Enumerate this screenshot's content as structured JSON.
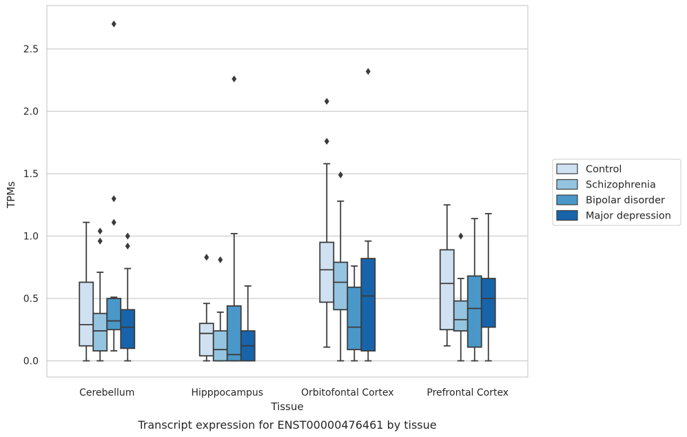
{
  "chart_data": {
    "type": "box",
    "xlabel": "Tissue",
    "ylabel": "TPMs",
    "caption": "Transcript expression for ENST00000476461 by tissue",
    "ylim": [
      -0.13,
      2.85
    ],
    "yticks": [
      0.0,
      0.5,
      1.0,
      1.5,
      2.0,
      2.5
    ],
    "ytick_labels": [
      "0.0",
      "0.5",
      "1.0",
      "1.5",
      "2.0",
      "2.5"
    ],
    "grid": "horizontal",
    "legend_position": "right",
    "categories": [
      "Cerebellum",
      "Hipppocampus",
      "Orbitofontal Cortex",
      "Prefrontal Cortex"
    ],
    "series": [
      {
        "name": "Control",
        "color": "#d0e1f2",
        "boxes": [
          {
            "min": 0.0,
            "q1": 0.12,
            "median": 0.29,
            "q3": 0.63,
            "max": 1.11,
            "outliers": []
          },
          {
            "min": 0.0,
            "q1": 0.04,
            "median": 0.22,
            "q3": 0.3,
            "max": 0.46,
            "outliers": [
              0.83
            ]
          },
          {
            "min": 0.11,
            "q1": 0.47,
            "median": 0.73,
            "q3": 0.95,
            "max": 1.58,
            "outliers": [
              1.76,
              2.08
            ]
          },
          {
            "min": 0.12,
            "q1": 0.25,
            "median": 0.62,
            "q3": 0.89,
            "max": 1.25,
            "outliers": []
          }
        ]
      },
      {
        "name": "Schizophrenia",
        "color": "#94c4df",
        "boxes": [
          {
            "min": 0.0,
            "q1": 0.08,
            "median": 0.24,
            "q3": 0.38,
            "max": 0.71,
            "outliers": [
              0.96,
              1.04
            ]
          },
          {
            "min": 0.0,
            "q1": 0.0,
            "median": 0.09,
            "q3": 0.24,
            "max": 0.39,
            "outliers": [
              0.81
            ]
          },
          {
            "min": 0.0,
            "q1": 0.41,
            "median": 0.63,
            "q3": 0.79,
            "max": 1.28,
            "outliers": [
              1.49
            ]
          },
          {
            "min": 0.0,
            "q1": 0.24,
            "median": 0.33,
            "q3": 0.48,
            "max": 0.66,
            "outliers": [
              1.0
            ]
          }
        ]
      },
      {
        "name": "Bipolar disorder",
        "color": "#4a98c9",
        "boxes": [
          {
            "min": 0.08,
            "q1": 0.25,
            "median": 0.32,
            "q3": 0.5,
            "max": 0.51,
            "outliers": [
              1.11,
              1.3,
              2.7
            ]
          },
          {
            "min": 0.0,
            "q1": 0.0,
            "median": 0.05,
            "q3": 0.44,
            "max": 1.02,
            "outliers": [
              2.26
            ]
          },
          {
            "min": 0.0,
            "q1": 0.09,
            "median": 0.27,
            "q3": 0.59,
            "max": 0.76,
            "outliers": []
          },
          {
            "min": 0.0,
            "q1": 0.11,
            "median": 0.42,
            "q3": 0.68,
            "max": 1.14,
            "outliers": []
          }
        ]
      },
      {
        "name": "Major depression",
        "color": "#1764ab",
        "boxes": [
          {
            "min": 0.0,
            "q1": 0.1,
            "median": 0.27,
            "q3": 0.41,
            "max": 0.74,
            "outliers": [
              0.92,
              1.0
            ]
          },
          {
            "min": 0.0,
            "q1": 0.0,
            "median": 0.12,
            "q3": 0.24,
            "max": 0.6,
            "outliers": []
          },
          {
            "min": 0.0,
            "q1": 0.08,
            "median": 0.52,
            "q3": 0.82,
            "max": 0.96,
            "outliers": [
              2.32
            ]
          },
          {
            "min": 0.0,
            "q1": 0.27,
            "median": 0.5,
            "q3": 0.66,
            "max": 1.18,
            "outliers": []
          }
        ]
      }
    ]
  }
}
